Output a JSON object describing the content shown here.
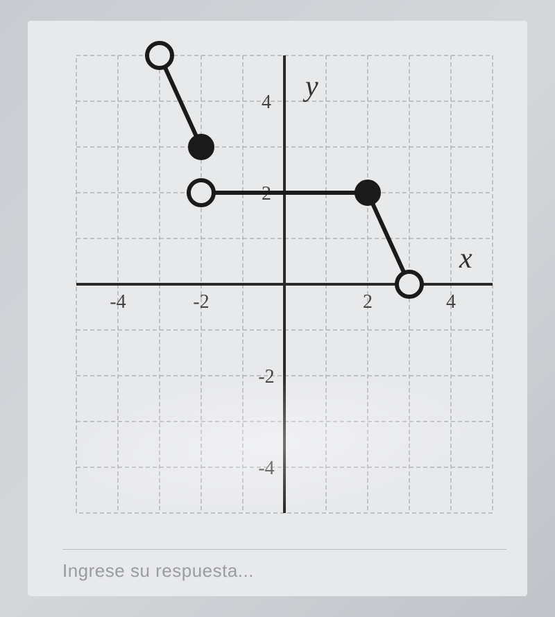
{
  "chart": {
    "type": "line",
    "background_color": "#e8e9eb",
    "grid_color": "#b0b2b6",
    "grid_dash": "6 4",
    "axis_color": "#2a2a2a",
    "axis_width": 4,
    "line_color": "#1a1a1a",
    "line_width": 6,
    "xlim": [
      -5,
      5
    ],
    "ylim": [
      -5,
      5
    ],
    "x_ticks": [
      -4,
      -2,
      2,
      4
    ],
    "y_ticks": [
      -4,
      -2,
      2,
      4
    ],
    "x_tick_labels": [
      "-4",
      "-2",
      "2",
      "4"
    ],
    "y_tick_labels": [
      "-4",
      "-2",
      "2",
      "4"
    ],
    "x_axis_label": "x",
    "y_axis_label": "y",
    "label_fontsize": 42,
    "tick_fontsize": 28,
    "point_radius_open": 18,
    "point_radius_filled": 18,
    "point_stroke_width": 6,
    "segments": [
      {
        "from": [
          -3,
          5
        ],
        "to": [
          -2,
          3
        ]
      },
      {
        "from": [
          -2,
          2
        ],
        "to": [
          2,
          2
        ]
      },
      {
        "from": [
          2,
          2
        ],
        "to": [
          3,
          0
        ]
      }
    ],
    "points": [
      {
        "x": -3,
        "y": 5,
        "style": "open"
      },
      {
        "x": -2,
        "y": 3,
        "style": "filled"
      },
      {
        "x": -2,
        "y": 2,
        "style": "open"
      },
      {
        "x": 2,
        "y": 2,
        "style": "filled"
      },
      {
        "x": 3,
        "y": 0,
        "style": "open"
      }
    ]
  },
  "input": {
    "placeholder": "Ingrese su respuesta..."
  }
}
